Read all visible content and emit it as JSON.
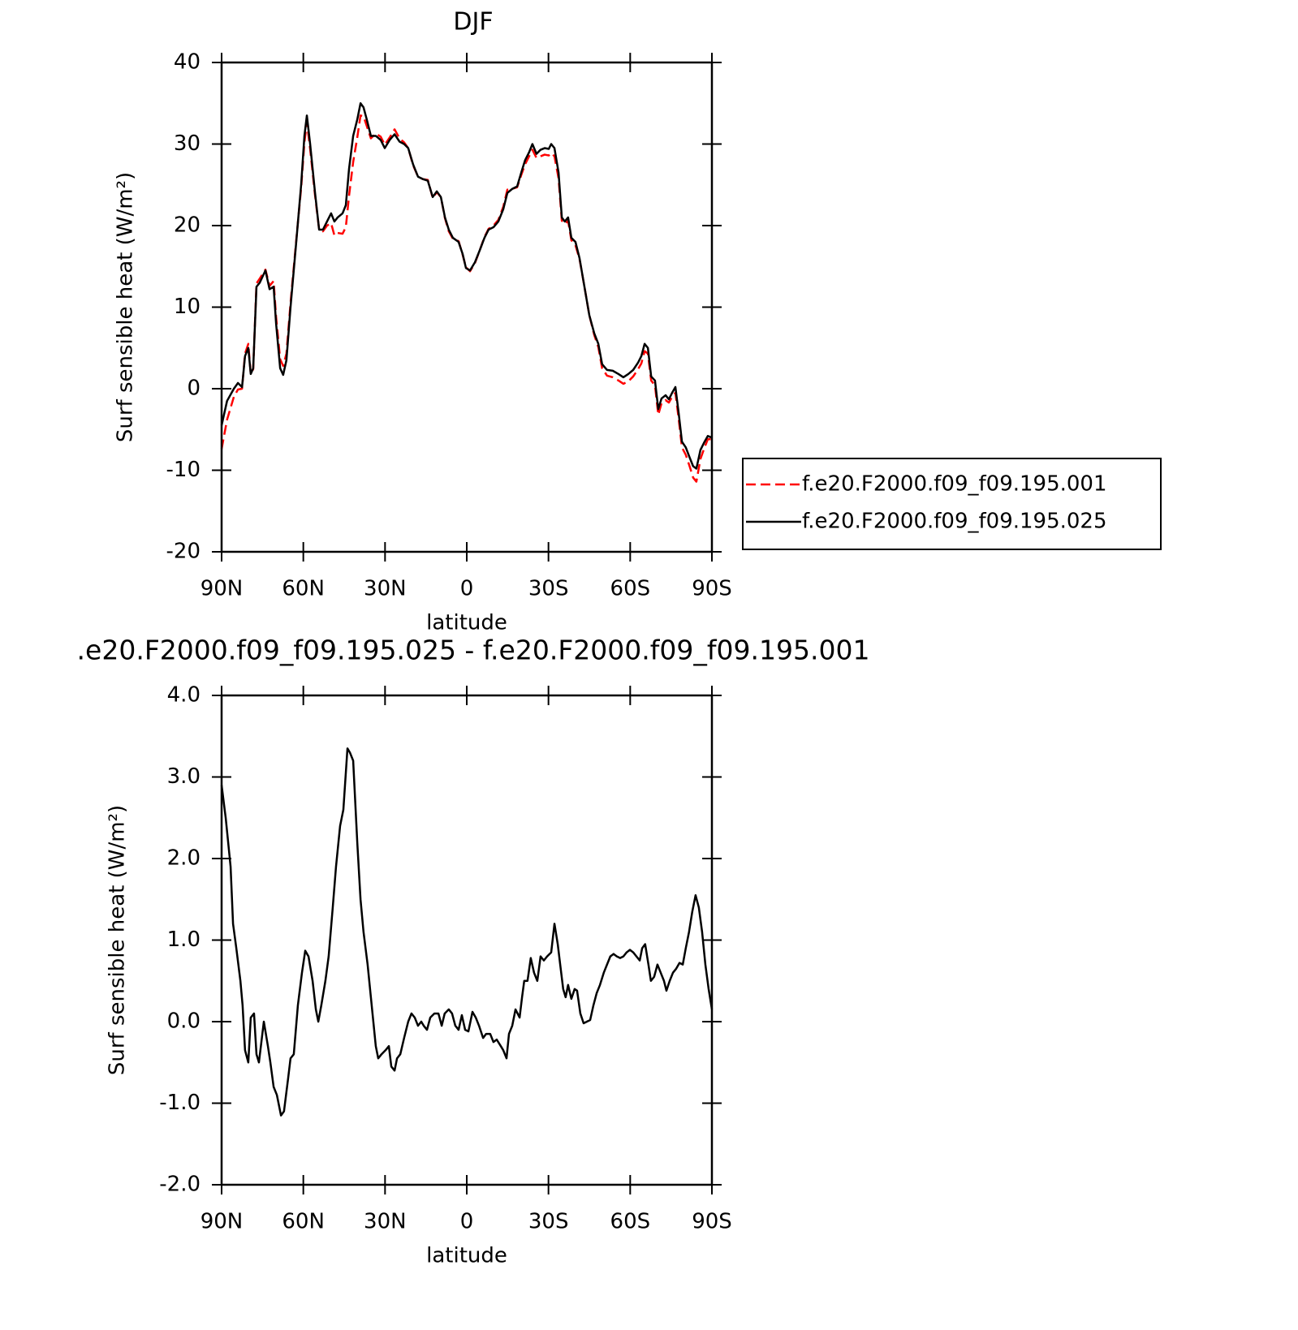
{
  "chart_data": [
    {
      "type": "line",
      "title": "DJF",
      "xlabel": "latitude",
      "ylabel": "Surf sensible heat (W/m²)",
      "xlim": [
        90,
        -90
      ],
      "xticks": [
        {
          "value": 90,
          "label": "90N"
        },
        {
          "value": 60,
          "label": "60N"
        },
        {
          "value": 30,
          "label": "30N"
        },
        0,
        {
          "value": -30,
          "label": "30S"
        },
        {
          "value": -60,
          "label": "60S"
        },
        {
          "value": -90,
          "label": "90S"
        }
      ],
      "ylim": [
        -20,
        40
      ],
      "yticks": [
        -20,
        -10,
        0,
        10,
        20,
        30,
        40
      ],
      "legend": "right",
      "x": [
        90,
        88,
        85.5,
        84,
        82.5,
        81.4,
        80.2,
        79.3,
        78.4,
        77.2,
        76,
        73.9,
        72.4,
        70.9,
        70,
        68.5,
        67.4,
        66.2,
        64.7,
        62.6,
        60.8,
        59.6,
        58.7,
        57.5,
        55.7,
        54.2,
        52.8,
        51.3,
        49.8,
        48.6,
        47.4,
        45.6,
        44.4,
        43.2,
        41.7,
        40.2,
        39,
        37.9,
        36.7,
        35.2,
        33.4,
        31.6,
        30.1,
        28.3,
        26.5,
        24.7,
        23,
        21.5,
        19.7,
        17.9,
        16.1,
        14.3,
        12.5,
        11,
        9.5,
        8,
        6.6,
        5.1,
        3,
        1.5,
        0.3,
        -1.2,
        -3,
        -4.8,
        -6.5,
        -8,
        -9.8,
        -11.6,
        -13.4,
        -14.9,
        -16.7,
        -18.5,
        -20,
        -21.4,
        -22.9,
        -24.1,
        -25.6,
        -27.1,
        -28.6,
        -30.1,
        -31,
        -32.2,
        -33.7,
        -34.9,
        -36,
        -37.2,
        -38.4,
        -39.9,
        -41.4,
        -43.2,
        -45,
        -46.8,
        -48.3,
        -49.7,
        -51.5,
        -53.6,
        -55.7,
        -57.5,
        -59.3,
        -61.1,
        -62.9,
        -64.1,
        -65.3,
        -66.5,
        -67.7,
        -69.1,
        -70.3,
        -71.5,
        -73,
        -74.2,
        -75.4,
        -76.6,
        -77.8,
        -79,
        -80.4,
        -81.9,
        -83.1,
        -84.3,
        -85.8,
        -87.3,
        -88.5,
        -90
      ],
      "series": [
        {
          "name": "f.e20.F2000.f09_f09.195.001",
          "color": "#ff0000",
          "linestyle": "dashed",
          "values": [
            -7.4,
            -3.8,
            -1,
            -0.1,
            0,
            4.3,
            5.5,
            1.8,
            2.4,
            12.9,
            13.5,
            14.6,
            12.6,
            13.2,
            8.8,
            3.6,
            2.8,
            4.3,
            10.5,
            18.2,
            24.6,
            30.2,
            32.7,
            29.4,
            23.7,
            19.5,
            19.3,
            20,
            20.3,
            18.8,
            19.1,
            19,
            19.8,
            23.7,
            27.8,
            30.8,
            33.5,
            33.4,
            32.2,
            30.7,
            31.3,
            30.9,
            29.9,
            30.8,
            31.8,
            30.7,
            30.2,
            29.5,
            27.4,
            26,
            25.7,
            25.6,
            23.4,
            24.1,
            23.5,
            20.9,
            19.3,
            18.4,
            18.1,
            16.4,
            14.9,
            14.4,
            15.4,
            17,
            18.6,
            19.6,
            20,
            20.7,
            22.3,
            24.4,
            24.5,
            24.7,
            26.2,
            27.5,
            28.5,
            29.3,
            28.3,
            28.5,
            28.7,
            28.6,
            28.9,
            28.5,
            25.8,
            20.6,
            20.2,
            20.6,
            18.2,
            17.6,
            15.9,
            12.5,
            9,
            6.6,
            5.1,
            2.5,
            1.6,
            1.4,
            1,
            0.6,
            0.9,
            1.5,
            2.4,
            3.1,
            4.6,
            4.3,
            1,
            0.4,
            -3.2,
            -1.8,
            -1.4,
            -1.7,
            -1,
            -0.5,
            -3.7,
            -7.2,
            -8.1,
            -9.6,
            -10.9,
            -11.4,
            -8.6,
            -7.2,
            -6.2,
            -6.2
          ]
        },
        {
          "name": "f.e20.F2000.f09_f09.195.025",
          "color": "#000000",
          "linestyle": "solid",
          "values": [
            -4.5,
            -1.5,
            0,
            0.7,
            0.2,
            4,
            5,
            1.8,
            2.5,
            12.5,
            13,
            14.5,
            12.2,
            12.5,
            8,
            2.5,
            1.7,
            3.5,
            10,
            18,
            25,
            31,
            33.5,
            30,
            24,
            19.5,
            19.5,
            20.5,
            21.5,
            20.5,
            21,
            21.5,
            22.5,
            27,
            31,
            33,
            35,
            34.5,
            33,
            31,
            31,
            30.5,
            29.5,
            30.5,
            31.2,
            30.3,
            30,
            29.5,
            27.5,
            26,
            25.7,
            25.5,
            23.5,
            24.2,
            23.5,
            21,
            19.5,
            18.5,
            18,
            16.5,
            14.8,
            14.5,
            15.5,
            17,
            18.5,
            19.5,
            19.8,
            20.5,
            22,
            24,
            24.5,
            24.8,
            26.5,
            28,
            29,
            30,
            28.8,
            29.3,
            29.5,
            29.4,
            30,
            29.5,
            26.5,
            21,
            20.5,
            21,
            18.5,
            18,
            16,
            12.5,
            9,
            6.8,
            5.5,
            3,
            2.3,
            2.2,
            1.8,
            1.4,
            1.8,
            2.3,
            3.2,
            4,
            5.5,
            5,
            1.5,
            1,
            -2.5,
            -1.2,
            -0.8,
            -1.3,
            -0.5,
            0.2,
            -3,
            -6.5,
            -7.2,
            -8.5,
            -9.5,
            -9.8,
            -7.5,
            -6.5,
            -5.8,
            -6
          ]
        }
      ]
    },
    {
      "type": "line",
      "title": ".e20.F2000.f09_f09.195.025 - f.e20.F2000.f09_f09.195.001",
      "xlabel": "latitude",
      "ylabel": "Surf sensible heat (W/m²)",
      "xlim": [
        90,
        -90
      ],
      "xticks": [
        {
          "value": 90,
          "label": "90N"
        },
        {
          "value": 60,
          "label": "60N"
        },
        {
          "value": 30,
          "label": "30N"
        },
        0,
        {
          "value": -30,
          "label": "30S"
        },
        {
          "value": -60,
          "label": "60S"
        },
        {
          "value": -90,
          "label": "90S"
        }
      ],
      "ylim": [
        -2,
        4
      ],
      "yticks": [
        {
          "value": -2,
          "label": "-2.0"
        },
        {
          "value": -1,
          "label": "-1.0"
        },
        {
          "value": 0,
          "label": "0.0"
        },
        {
          "value": 1,
          "label": "1.0"
        },
        {
          "value": 2,
          "label": "2.0"
        },
        {
          "value": 3,
          "label": "3.0"
        },
        {
          "value": 4,
          "label": "4.0"
        }
      ],
      "x": [
        90,
        88.5,
        86.7,
        85.8,
        84.6,
        83.1,
        82.3,
        81.4,
        80.2,
        79.3,
        78.1,
        77.2,
        76.3,
        74.5,
        73,
        72.1,
        70.9,
        69.7,
        68.2,
        67.1,
        65.6,
        64.7,
        63.5,
        62,
        60.5,
        59.3,
        58.1,
        56.6,
        55.4,
        54.5,
        53.4,
        51.9,
        50.7,
        49.2,
        48,
        46.5,
        45.3,
        43.8,
        42.9,
        41.7,
        40.2,
        39,
        37.9,
        36.4,
        35.2,
        34.3,
        33.4,
        32.5,
        31.3,
        29.8,
        28.6,
        27.7,
        26.5,
        25.6,
        24.4,
        23,
        21.5,
        20.3,
        19.1,
        17.9,
        16.7,
        15.8,
        14.6,
        13.4,
        11.9,
        10.4,
        9.2,
        8.1,
        6.6,
        5.4,
        4.2,
        3,
        1.8,
        0.6,
        -0.6,
        -2.1,
        -3.3,
        -4.5,
        -6,
        -7.1,
        -8.6,
        -9.8,
        -11,
        -12.5,
        -13.4,
        -14.6,
        -15.5,
        -16.7,
        -17.9,
        -19.4,
        -20.3,
        -21.1,
        -22.3,
        -23.5,
        -24.7,
        -25.9,
        -27.1,
        -28.3,
        -29.5,
        -31,
        -32.2,
        -33.4,
        -34.3,
        -35.4,
        -36.3,
        -37.2,
        -38.4,
        -39.6,
        -40.5,
        -41.7,
        -42.9,
        -44.1,
        -45.3,
        -46.5,
        -47.7,
        -48.9,
        -50.3,
        -51.5,
        -52.7,
        -53.9,
        -55.1,
        -56.3,
        -57.5,
        -58.7,
        -59.9,
        -61.1,
        -62.3,
        -63.5,
        -64.4,
        -65.5,
        -66.7,
        -67.6,
        -68.8,
        -70,
        -71.2,
        -72.4,
        -73.3,
        -74.5,
        -75.7,
        -76.9,
        -78.1,
        -79.3,
        -80.4,
        -81.6,
        -82.8,
        -84,
        -85.2,
        -86.4,
        -87.6,
        -88.8,
        -90
      ],
      "series": [
        {
          "color": "#000000",
          "linestyle": "solid",
          "values": [
            2.9,
            2.5,
            1.9,
            1.2,
            0.9,
            0.5,
            0.2,
            -0.35,
            -0.5,
            0.05,
            0.1,
            -0.4,
            -0.5,
            0,
            -0.3,
            -0.5,
            -0.8,
            -0.9,
            -1.15,
            -1.1,
            -0.7,
            -0.45,
            -0.4,
            0.2,
            0.6,
            0.87,
            0.8,
            0.5,
            0.15,
            0,
            0.2,
            0.5,
            0.8,
            1.4,
            1.9,
            2.4,
            2.6,
            3.35,
            3.3,
            3.2,
            2.2,
            1.5,
            1.1,
            0.7,
            0.3,
            0,
            -0.3,
            -0.45,
            -0.4,
            -0.35,
            -0.3,
            -0.55,
            -0.6,
            -0.45,
            -0.4,
            -0.2,
            0,
            0.1,
            0.05,
            -0.05,
            0,
            -0.05,
            -0.1,
            0.05,
            0.1,
            0.1,
            -0.05,
            0.1,
            0.15,
            0.1,
            -0.05,
            -0.1,
            0.08,
            -0.1,
            -0.12,
            0.12,
            0.05,
            -0.05,
            -0.2,
            -0.15,
            -0.15,
            -0.25,
            -0.22,
            -0.3,
            -0.35,
            -0.45,
            -0.15,
            -0.05,
            0.15,
            0.05,
            0.3,
            0.5,
            0.5,
            0.78,
            0.6,
            0.5,
            0.8,
            0.75,
            0.8,
            0.85,
            1.2,
            0.95,
            0.7,
            0.4,
            0.3,
            0.45,
            0.28,
            0.4,
            0.38,
            0.1,
            -0.02,
            0,
            0.02,
            0.2,
            0.35,
            0.45,
            0.6,
            0.7,
            0.8,
            0.83,
            0.8,
            0.78,
            0.8,
            0.85,
            0.88,
            0.85,
            0.8,
            0.75,
            0.9,
            0.95,
            0.7,
            0.5,
            0.55,
            0.7,
            0.6,
            0.5,
            0.38,
            0.5,
            0.6,
            0.65,
            0.72,
            0.7,
            0.9,
            1.1,
            1.35,
            1.55,
            1.4,
            1.1,
            0.7,
            0.4,
            0.15
          ]
        }
      ]
    }
  ]
}
